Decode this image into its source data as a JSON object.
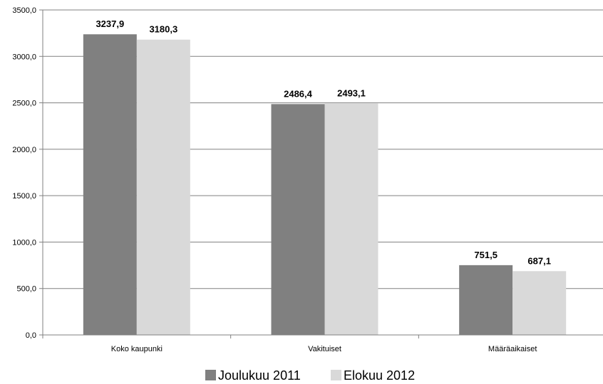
{
  "chart_data": {
    "type": "bar",
    "categories": [
      "Koko kaupunki",
      "Vakituiset",
      "Määräaikaiset"
    ],
    "series": [
      {
        "name": "Joulukuu 2011",
        "values": [
          3237.9,
          2486.4,
          751.5
        ],
        "labels": [
          "3237,9",
          "2486,4",
          "751,5"
        ],
        "color": "#808080"
      },
      {
        "name": "Elokuu 2012",
        "values": [
          3180.3,
          2493.1,
          687.1
        ],
        "labels": [
          "3180,3",
          "2493,1",
          "687,1"
        ],
        "color": "#d9d9d9"
      }
    ],
    "yticks": [
      0,
      500,
      1000,
      1500,
      2000,
      2500,
      3000,
      3500
    ],
    "ytick_labels": [
      "0,0",
      "500,0",
      "1000,0",
      "1500,0",
      "2000,0",
      "2500,0",
      "3000,0",
      "3500,0"
    ],
    "ylim": [
      0,
      3500
    ],
    "grid": true,
    "legend": "bottom",
    "gridline_color": "#808080",
    "axis_color": "#808080"
  }
}
